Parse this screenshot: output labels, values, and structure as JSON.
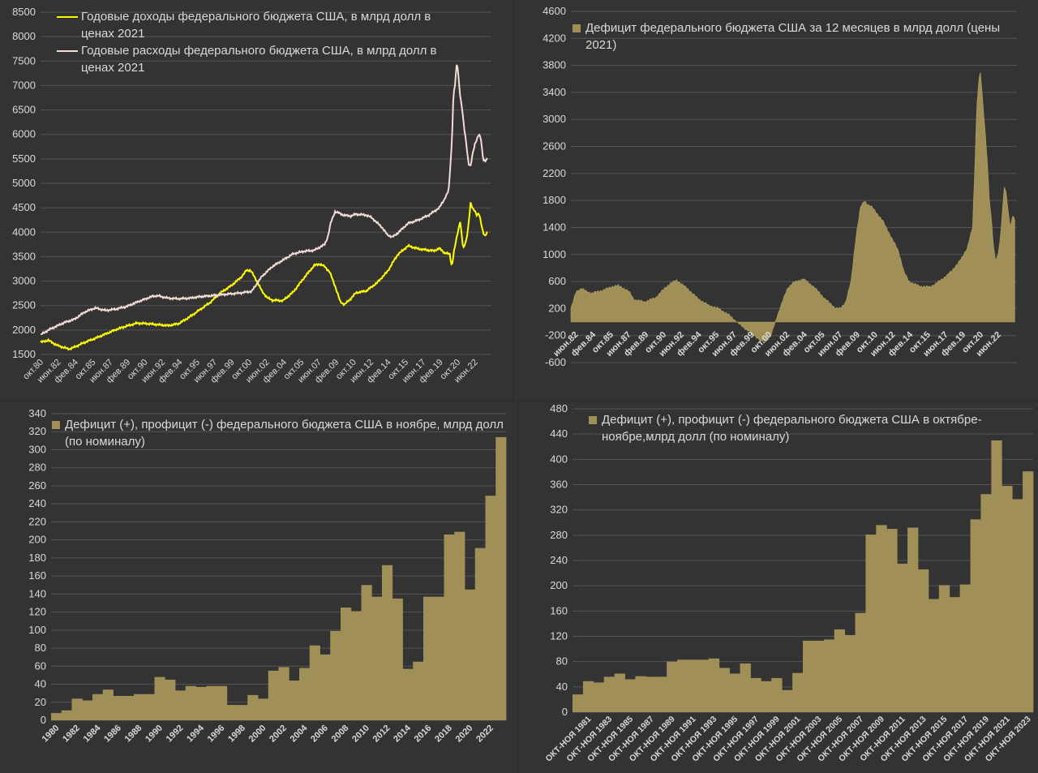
{
  "colors": {
    "background": "#333333",
    "grid": "#555555",
    "text": "#d9d9d9",
    "revenue": "#ffff00",
    "spending": "#f4dcd6",
    "bar": "#a09058",
    "bar_edge": "#b2a062"
  },
  "chart_data": [
    {
      "type": "line",
      "legend": [
        "Годовые доходы федерального бюджета США, в млрд долл в ценах 2021",
        "Годовые расходы федерального бюджета США, в млрд долл в ценах 2021"
      ],
      "ylim": [
        1500,
        8500
      ],
      "yticks": [
        1500,
        2000,
        2500,
        3000,
        3500,
        4000,
        4500,
        5000,
        5500,
        6000,
        6500,
        7000,
        7500,
        8000,
        8500
      ],
      "xlim": [
        1980.75,
        2024.0
      ],
      "xtick_labels": [
        "окт.80",
        "июн.82",
        "фев.84",
        "окт.85",
        "июн.87",
        "фев.89",
        "окт.90",
        "июн.92",
        "фев.94",
        "окт.95",
        "июн.97",
        "фев.99",
        "окт.00",
        "июн.02",
        "фев.04",
        "окт.05",
        "июн.07",
        "фев.09",
        "окт.10",
        "июн.12",
        "фев.14",
        "окт.15",
        "июн.17",
        "фев.19",
        "окт.20",
        "июн.22"
      ],
      "xtick_pos": [
        1980.75,
        1982.42,
        1984.08,
        1985.75,
        1987.42,
        1989.08,
        1990.75,
        1992.42,
        1994.08,
        1995.75,
        1997.42,
        1999.08,
        2000.75,
        2002.42,
        2004.08,
        2005.75,
        2007.42,
        2009.08,
        2010.75,
        2012.42,
        2014.08,
        2015.75,
        2017.42,
        2019.08,
        2020.75,
        2022.42
      ],
      "series": [
        {
          "name": "Годовые доходы федерального бюджета США, в млрд долл в ценах 2021",
          "x": [
            1980.75,
            1981.5,
            1982.3,
            1983.0,
            1983.5,
            1984.0,
            1985.0,
            1986.0,
            1987.0,
            1988.0,
            1989.0,
            1990.0,
            1991.0,
            1992.0,
            1993.0,
            1994.0,
            1995.0,
            1996.0,
            1997.0,
            1998.0,
            1999.0,
            2000.0,
            2000.5,
            2000.9,
            2001.5,
            2002.0,
            2002.5,
            2003.0,
            2004.0,
            2005.0,
            2006.0,
            2007.0,
            2007.5,
            2008.0,
            2008.5,
            2009.0,
            2009.5,
            2009.9,
            2010.5,
            2011.0,
            2012.0,
            2013.0,
            2014.0,
            2015.0,
            2016.0,
            2017.0,
            2018.0,
            2018.5,
            2019.0,
            2019.5,
            2020.0,
            2020.2,
            2020.4,
            2020.7,
            2021.0,
            2021.3,
            2021.6,
            2021.8,
            2022.0,
            2022.2,
            2022.4,
            2022.6,
            2022.8,
            2023.0,
            2023.2,
            2023.4,
            2023.6
          ],
          "values": [
            1750,
            1790,
            1690,
            1640,
            1610,
            1650,
            1750,
            1830,
            1920,
            2010,
            2080,
            2140,
            2130,
            2110,
            2090,
            2130,
            2260,
            2410,
            2560,
            2760,
            2900,
            3080,
            3220,
            3220,
            3000,
            2790,
            2660,
            2610,
            2600,
            2780,
            3060,
            3320,
            3350,
            3300,
            3180,
            2900,
            2580,
            2520,
            2640,
            2760,
            2800,
            2960,
            3190,
            3540,
            3720,
            3660,
            3630,
            3620,
            3670,
            3580,
            3550,
            3300,
            3600,
            3920,
            4230,
            3650,
            3850,
            4150,
            4590,
            4480,
            4450,
            4350,
            4380,
            4200,
            4000,
            3920,
            4000
          ]
        },
        {
          "name": "Годовые расходы федерального бюджета США, в млрд долл в ценах 2021",
          "x": [
            1980.75,
            1981.5,
            1982.3,
            1983.0,
            1984.0,
            1985.0,
            1986.0,
            1987.0,
            1988.0,
            1989.0,
            1990.0,
            1991.0,
            1991.5,
            1992.0,
            1993.0,
            1994.0,
            1995.0,
            1996.0,
            1997.0,
            1998.0,
            1999.0,
            2000.0,
            2001.0,
            2002.0,
            2003.0,
            2004.0,
            2005.0,
            2006.0,
            2007.0,
            2008.0,
            2008.3,
            2008.6,
            2009.0,
            2009.3,
            2009.8,
            2010.5,
            2011.0,
            2012.0,
            2012.5,
            2013.0,
            2013.5,
            2014.0,
            2014.5,
            2015.0,
            2016.0,
            2017.0,
            2018.0,
            2019.0,
            2019.5,
            2019.9,
            2020.2,
            2020.35,
            2020.5,
            2020.7,
            2021.0,
            2021.2,
            2021.4,
            2021.6,
            2021.8,
            2022.0,
            2022.2,
            2022.4,
            2022.6,
            2022.8,
            2023.0,
            2023.2,
            2023.4,
            2023.6
          ],
          "values": [
            1900,
            2000,
            2080,
            2150,
            2220,
            2370,
            2450,
            2400,
            2430,
            2480,
            2570,
            2650,
            2690,
            2700,
            2650,
            2640,
            2650,
            2680,
            2700,
            2720,
            2740,
            2760,
            2790,
            3100,
            3300,
            3430,
            3560,
            3610,
            3630,
            3750,
            3900,
            4200,
            4420,
            4400,
            4350,
            4330,
            4370,
            4350,
            4300,
            4200,
            4100,
            3950,
            3900,
            3980,
            4180,
            4250,
            4350,
            4500,
            4680,
            4850,
            5800,
            6800,
            7000,
            7500,
            6800,
            6500,
            6100,
            5800,
            5400,
            5350,
            5600,
            5800,
            5900,
            6000,
            5900,
            5500,
            5450,
            5500
          ]
        }
      ]
    },
    {
      "type": "bar",
      "legend": [
        "Дефицит федерального бюджета США за 12 месяцев в млрд долл (цены 2021)"
      ],
      "ylim": [
        -600,
        4600
      ],
      "yticks": [
        -600,
        -200,
        200,
        600,
        1000,
        1400,
        1800,
        2200,
        2600,
        3000,
        3400,
        3800,
        4200,
        4600
      ],
      "xlim": [
        1982.0,
        2024.2
      ],
      "xtick_labels": [
        "июн.82",
        "фев.84",
        "окт.85",
        "июн.87",
        "фев.89",
        "окт.90",
        "июн.92",
        "фев.94",
        "окт.95",
        "июн.97",
        "фев.99",
        "окт.00",
        "июн.02",
        "фев.04",
        "окт.05",
        "июн.07",
        "фев.09",
        "окт.10",
        "июн.12",
        "фев.14",
        "окт.15",
        "июн.17",
        "фев.19",
        "окт.20",
        "июн.22"
      ],
      "xtick_pos": [
        1982.42,
        1984.08,
        1985.75,
        1987.42,
        1989.08,
        1990.75,
        1992.42,
        1994.08,
        1995.75,
        1997.42,
        1999.08,
        2000.75,
        2002.42,
        2004.08,
        2005.75,
        2007.42,
        2009.08,
        2010.75,
        2012.42,
        2014.08,
        2015.75,
        2017.42,
        2019.08,
        2020.75,
        2022.42
      ],
      "series": [
        {
          "name": "Дефицит федерального бюджета США за 12 месяцев в млрд долл (цены 2021)",
          "x": [
            1982.0,
            1982.5,
            1983.0,
            1983.5,
            1984.0,
            1985.0,
            1986.0,
            1986.5,
            1987.0,
            1987.5,
            1988.0,
            1989.0,
            1990.0,
            1991.0,
            1991.5,
            1992.0,
            1992.5,
            1993.0,
            1994.0,
            1995.0,
            1996.0,
            1997.0,
            1998.0,
            1998.5,
            1999.0,
            2000.0,
            2000.5,
            2001.0,
            2001.5,
            2002.0,
            2002.5,
            2003.0,
            2004.0,
            2004.5,
            2005.0,
            2006.0,
            2007.0,
            2007.5,
            2008.0,
            2008.5,
            2009.0,
            2009.4,
            2009.8,
            2010.0,
            2010.5,
            2011.0,
            2011.5,
            2012.0,
            2013.0,
            2013.5,
            2014.0,
            2015.0,
            2016.0,
            2017.0,
            2018.0,
            2019.0,
            2019.5,
            2020.0,
            2020.2,
            2020.4,
            2020.6,
            2020.75,
            2021.0,
            2021.2,
            2021.4,
            2021.6,
            2021.8,
            2022.0,
            2022.2,
            2022.4,
            2022.6,
            2022.8,
            2023.0,
            2023.2,
            2023.4,
            2023.6,
            2023.8,
            2024.0
          ],
          "values": [
            200,
            450,
            500,
            450,
            430,
            470,
            530,
            540,
            500,
            450,
            330,
            300,
            360,
            520,
            580,
            620,
            560,
            500,
            350,
            250,
            200,
            100,
            -40,
            -100,
            -150,
            -280,
            -280,
            -170,
            80,
            300,
            500,
            580,
            640,
            580,
            520,
            350,
            210,
            200,
            300,
            600,
            1300,
            1700,
            1800,
            1750,
            1700,
            1600,
            1500,
            1350,
            1050,
            750,
            600,
            530,
            520,
            620,
            750,
            950,
            1100,
            1400,
            2200,
            3200,
            3600,
            3700,
            3200,
            2800,
            2400,
            1800,
            1500,
            1100,
            900,
            1000,
            1200,
            1600,
            2000,
            1900,
            1600,
            1400,
            1600,
            1500
          ]
        }
      ]
    },
    {
      "type": "bar",
      "legend": [
        "Дефицит (+), профицит (-) федерального бюджета США в ноябре, млрд долл (по номиналу)"
      ],
      "ylim": [
        0,
        340
      ],
      "yticks": [
        0,
        20,
        40,
        60,
        80,
        100,
        120,
        140,
        160,
        180,
        200,
        220,
        240,
        260,
        280,
        300,
        320,
        340
      ],
      "categories": [
        1980,
        1981,
        1982,
        1983,
        1984,
        1985,
        1986,
        1987,
        1988,
        1989,
        1990,
        1991,
        1992,
        1993,
        1994,
        1995,
        1996,
        1997,
        1998,
        1999,
        2000,
        2001,
        2002,
        2003,
        2004,
        2005,
        2006,
        2007,
        2008,
        2009,
        2010,
        2011,
        2012,
        2013,
        2014,
        2015,
        2016,
        2017,
        2018,
        2019,
        2020,
        2021,
        2022,
        2023
      ],
      "xtick_labels": [
        "1980",
        "1982",
        "1984",
        "1986",
        "1988",
        "1990",
        "1992",
        "1994",
        "1996",
        "1998",
        "2000",
        "2002",
        "2004",
        "2006",
        "2008",
        "2010",
        "2012",
        "2014",
        "2016",
        "2018",
        "2020",
        "2022"
      ],
      "values": [
        8,
        11,
        24,
        22,
        29,
        34,
        27,
        27,
        29,
        29,
        48,
        45,
        33,
        38,
        37,
        38,
        38,
        17,
        17,
        28,
        24,
        55,
        59,
        44,
        58,
        83,
        73,
        99,
        125,
        121,
        150,
        137,
        172,
        135,
        57,
        65,
        137,
        137,
        206,
        209,
        145,
        191,
        249,
        314
      ]
    },
    {
      "type": "bar",
      "legend": [
        "Дефицит (+), профицит (-) федерального бюджета США в октябре-ноябре,млрд долл (по номиналу)"
      ],
      "ylim": [
        0,
        480
      ],
      "yticks": [
        0,
        40,
        80,
        120,
        160,
        200,
        240,
        280,
        320,
        360,
        400,
        440,
        480
      ],
      "categories": [
        "ОКТ-НОЯ 1980",
        "ОКТ-НОЯ 1981",
        "ОКТ-НОЯ 1982",
        "ОКТ-НОЯ 1983",
        "ОКТ-НОЯ 1984",
        "ОКТ-НОЯ 1985",
        "ОКТ-НОЯ 1986",
        "ОКТ-НОЯ 1987",
        "ОКТ-НОЯ 1988",
        "ОКТ-НОЯ 1989",
        "ОКТ-НОЯ 1990",
        "ОКТ-НОЯ 1991",
        "ОКТ-НОЯ 1992",
        "ОКТ-НОЯ 1993",
        "ОКТ-НОЯ 1994",
        "ОКТ-НОЯ 1995",
        "ОКТ-НОЯ 1996",
        "ОКТ-НОЯ 1997",
        "ОКТ-НОЯ 1998",
        "ОКТ-НОЯ 1999",
        "ОКТ-НОЯ 2000",
        "ОКТ-НОЯ 2001",
        "ОКТ-НОЯ 2002",
        "ОКТ-НОЯ 2003",
        "ОКТ-НОЯ 2004",
        "ОКТ-НОЯ 2005",
        "ОКТ-НОЯ 2006",
        "ОКТ-НОЯ 2007",
        "ОКТ-НОЯ 2008",
        "ОКТ-НОЯ 2009",
        "ОКТ-НОЯ 2010",
        "ОКТ-НОЯ 2011",
        "ОКТ-НОЯ 2012",
        "ОКТ-НОЯ 2013",
        "ОКТ-НОЯ 2014",
        "ОКТ-НОЯ 2015",
        "ОКТ-НОЯ 2016",
        "ОКТ-НОЯ 2017",
        "ОКТ-НОЯ 2018",
        "ОКТ-НОЯ 2019",
        "ОКТ-НОЯ 2020",
        "ОКТ-НОЯ 2021",
        "ОКТ-НОЯ 2022",
        "ОКТ-НОЯ 2023"
      ],
      "xtick_labels": [
        "ОКТ-НОЯ 1981",
        "ОКТ-НОЯ 1983",
        "ОКТ-НОЯ 1985",
        "ОКТ-НОЯ 1987",
        "ОКТ-НОЯ 1989",
        "ОКТ-НОЯ 1991",
        "ОКТ-НОЯ 1993",
        "ОКТ-НОЯ 1995",
        "ОКТ-НОЯ 1997",
        "ОКТ-НОЯ 1999",
        "ОКТ-НОЯ 2001",
        "ОКТ-НОЯ 2003",
        "ОКТ-НОЯ 2005",
        "ОКТ-НОЯ 2007",
        "ОКТ-НОЯ 2009",
        "ОКТ-НОЯ 2011",
        "ОКТ-НОЯ 2013",
        "ОКТ-НОЯ 2015",
        "ОКТ-НОЯ 2017",
        "ОКТ-НОЯ 2019",
        "ОКТ-НОЯ 2021",
        "ОКТ-НОЯ 2023"
      ],
      "values": [
        28,
        49,
        47,
        56,
        61,
        52,
        57,
        56,
        56,
        80,
        83,
        83,
        83,
        85,
        70,
        61,
        77,
        54,
        49,
        54,
        35,
        62,
        113,
        113,
        115,
        131,
        122,
        157,
        281,
        296,
        290,
        235,
        292,
        226,
        179,
        201,
        182,
        202,
        305,
        345,
        430,
        358,
        337,
        381
      ]
    }
  ]
}
